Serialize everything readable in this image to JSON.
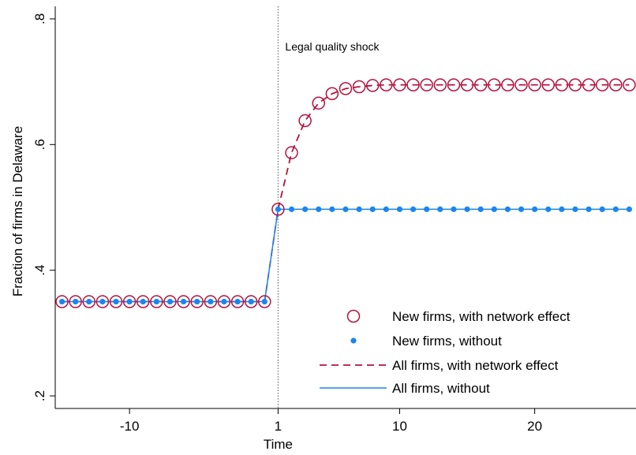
{
  "chart_data": {
    "type": "line",
    "xlabel": "Time",
    "ylabel": "Fraction of firms in Delaware",
    "xlim": [
      -15.5,
      27.5
    ],
    "ylim": [
      0.18,
      0.82
    ],
    "x_ticks": [
      {
        "value": -10,
        "label": "-10"
      },
      {
        "value": 1,
        "label": "1"
      },
      {
        "value": 10,
        "label": "10"
      },
      {
        "value": 20,
        "label": "20"
      }
    ],
    "y_ticks": [
      {
        "value": 0.2,
        "label": ".2"
      },
      {
        "value": 0.4,
        "label": ".4"
      },
      {
        "value": 0.6,
        "label": ".6"
      },
      {
        "value": 0.8,
        "label": ".8"
      }
    ],
    "vline": {
      "x": 1,
      "style": "dotted"
    },
    "annotation": "Legal quality shock",
    "x": [
      -15,
      -14,
      -13,
      -12,
      -11,
      -10,
      -9,
      -8,
      -7,
      -6,
      -5,
      -4,
      -3,
      -2,
      -1,
      0,
      1,
      2,
      3,
      4,
      5,
      6,
      7,
      8,
      9,
      10,
      11,
      12,
      13,
      14,
      15,
      16,
      17,
      18,
      19,
      20,
      21,
      22,
      23,
      24,
      25,
      26,
      27
    ],
    "series": [
      {
        "name": "New firms, with network effect",
        "marker": "hollow-circle",
        "color": "#b5123e",
        "values": [
          0.35,
          0.35,
          0.35,
          0.35,
          0.35,
          0.35,
          0.35,
          0.35,
          0.35,
          0.35,
          0.35,
          0.35,
          0.35,
          0.35,
          0.35,
          0.35,
          0.497,
          0.587,
          0.638,
          0.666,
          0.681,
          0.689,
          0.692,
          0.694,
          0.695,
          0.695,
          0.695,
          0.695,
          0.695,
          0.695,
          0.695,
          0.695,
          0.695,
          0.695,
          0.695,
          0.695,
          0.695,
          0.695,
          0.695,
          0.695,
          0.695,
          0.695,
          0.695
        ]
      },
      {
        "name": "New firms, without",
        "marker": "dot",
        "color": "#1a85f0",
        "values": [
          0.35,
          0.35,
          0.35,
          0.35,
          0.35,
          0.35,
          0.35,
          0.35,
          0.35,
          0.35,
          0.35,
          0.35,
          0.35,
          0.35,
          0.35,
          0.35,
          0.497,
          0.497,
          0.497,
          0.497,
          0.497,
          0.497,
          0.497,
          0.497,
          0.497,
          0.497,
          0.497,
          0.497,
          0.497,
          0.497,
          0.497,
          0.497,
          0.497,
          0.497,
          0.497,
          0.497,
          0.497,
          0.497,
          0.497,
          0.497,
          0.497,
          0.497,
          0.497
        ]
      },
      {
        "name": "All firms, with network effect",
        "line": "dashed",
        "color": "#b5123e",
        "values": [
          0.35,
          0.35,
          0.35,
          0.35,
          0.35,
          0.35,
          0.35,
          0.35,
          0.35,
          0.35,
          0.35,
          0.35,
          0.35,
          0.35,
          0.35,
          0.35,
          0.497,
          0.587,
          0.638,
          0.666,
          0.681,
          0.689,
          0.692,
          0.694,
          0.695,
          0.695,
          0.695,
          0.695,
          0.695,
          0.695,
          0.695,
          0.695,
          0.695,
          0.695,
          0.695,
          0.695,
          0.695,
          0.695,
          0.695,
          0.695,
          0.695,
          0.695,
          0.695
        ]
      },
      {
        "name": "All firms, without",
        "line": "solid",
        "color": "#1a85f0",
        "values": [
          0.35,
          0.35,
          0.35,
          0.35,
          0.35,
          0.35,
          0.35,
          0.35,
          0.35,
          0.35,
          0.35,
          0.35,
          0.35,
          0.35,
          0.35,
          0.35,
          0.497,
          0.497,
          0.497,
          0.497,
          0.497,
          0.497,
          0.497,
          0.497,
          0.497,
          0.497,
          0.497,
          0.497,
          0.497,
          0.497,
          0.497,
          0.497,
          0.497,
          0.497,
          0.497,
          0.497,
          0.497,
          0.497,
          0.497,
          0.497,
          0.497,
          0.497,
          0.497
        ]
      }
    ],
    "legend": {
      "position": "bottom-right",
      "frame": false
    },
    "grid": false
  }
}
